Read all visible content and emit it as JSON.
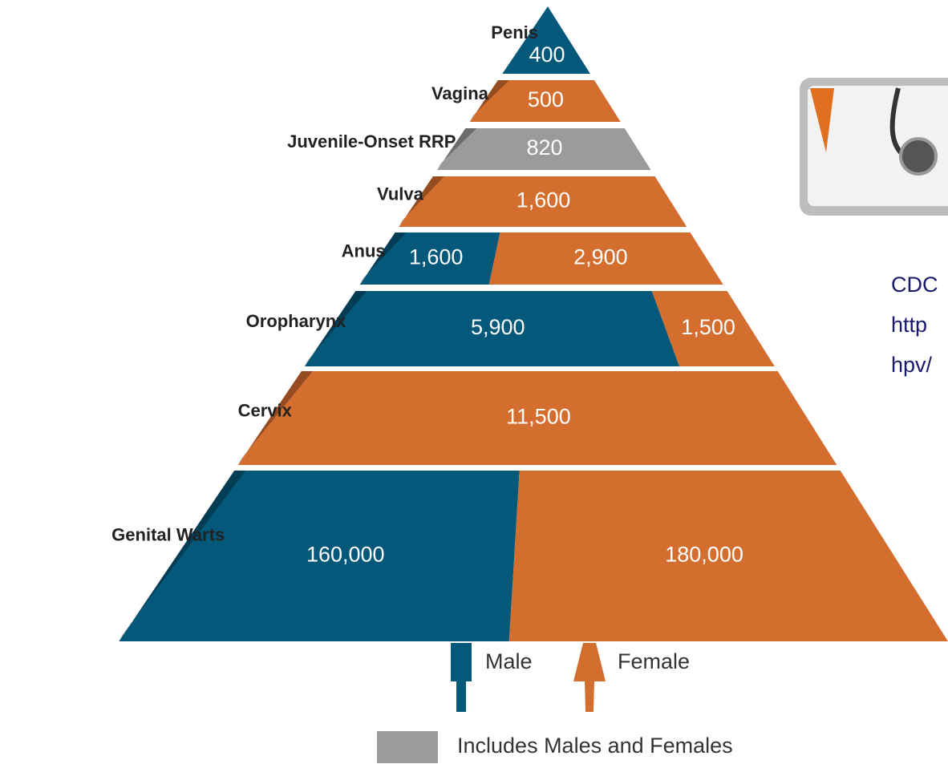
{
  "chart_data": {
    "type": "pyramid",
    "categories": [
      "Penis",
      "Vagina",
      "Juvenile-Onset RRP",
      "Vulva",
      "Anus",
      "Oropharynx",
      "Cervix",
      "Genital Warts"
    ],
    "series": [
      {
        "name": "Male",
        "color": "#04587a",
        "values": [
          400,
          null,
          null,
          null,
          1600,
          5900,
          null,
          160000
        ],
        "value_labels": [
          "400",
          null,
          null,
          null,
          "1,600",
          "5,900",
          null,
          "160,000"
        ]
      },
      {
        "name": "Female",
        "color": "#d46e2f",
        "values": [
          null,
          500,
          null,
          1600,
          2900,
          1500,
          11500,
          180000
        ],
        "value_labels": [
          null,
          "500",
          null,
          "1,600",
          "2,900",
          "1,500",
          "11,500",
          "180,000"
        ]
      },
      {
        "name": "Includes Males and Females",
        "color": "#9a9b9d",
        "values": [
          null,
          null,
          820,
          null,
          null,
          null,
          null,
          null
        ],
        "value_labels": [
          null,
          null,
          "820",
          null,
          null,
          null,
          null,
          null
        ]
      }
    ],
    "annotations": [
      "CDC",
      "http",
      "hpv/"
    ]
  }
}
